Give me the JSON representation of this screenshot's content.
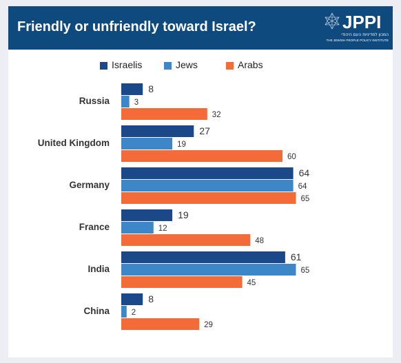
{
  "header": {
    "title": "Friendly or unfriendly toward Israel?",
    "logo_text": "JPPI",
    "logo_hebrew": "המכון למדיניות העם היהודי",
    "logo_subtitle": "THE JEWISH PEOPLE POLICY INSTITUTE"
  },
  "colors": {
    "header_bg": "#0f4a7e",
    "israelis": "#1b4889",
    "jews": "#3d87c9",
    "arabs": "#f26b39"
  },
  "chart_data": {
    "type": "bar",
    "orientation": "horizontal",
    "title": "Friendly or unfriendly toward Israel?",
    "categories": [
      "Russia",
      "United Kingdom",
      "Germany",
      "France",
      "India",
      "China"
    ],
    "series": [
      {
        "name": "Israelis",
        "color": "#1b4889",
        "values": [
          8,
          27,
          64,
          19,
          61,
          8
        ]
      },
      {
        "name": "Jews",
        "color": "#3d87c9",
        "values": [
          3,
          19,
          64,
          12,
          65,
          2
        ]
      },
      {
        "name": "Arabs",
        "color": "#f26b39",
        "values": [
          32,
          60,
          65,
          48,
          45,
          29
        ]
      }
    ],
    "xlim": [
      0,
      100
    ],
    "grid": false,
    "legend": "top",
    "data_labels": true
  }
}
